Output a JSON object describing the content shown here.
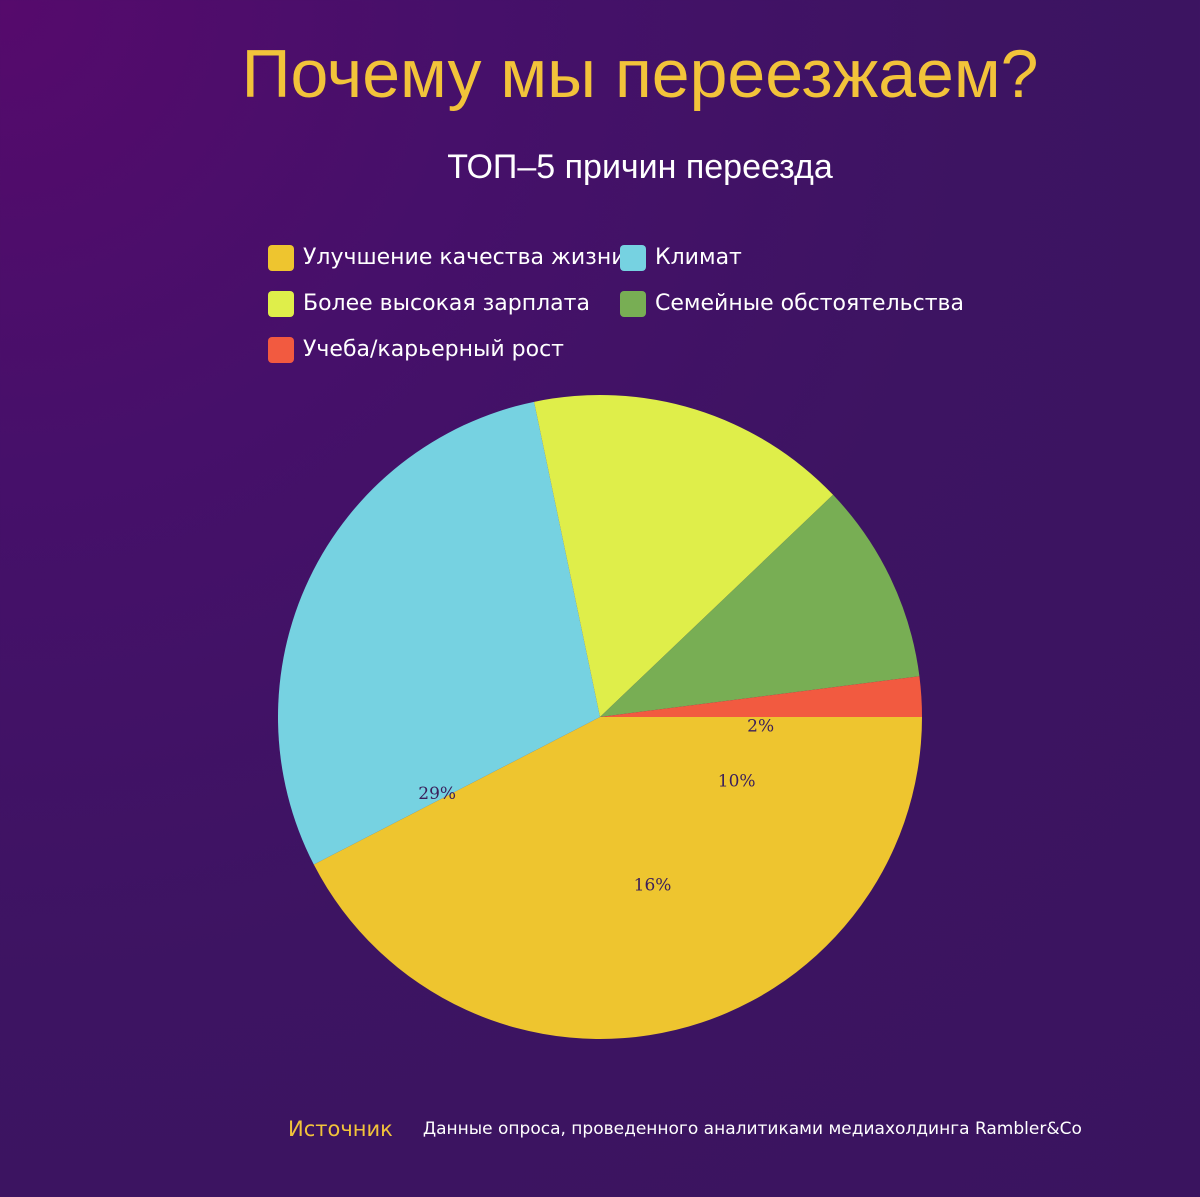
{
  "colors": {
    "title": "#f2c33a",
    "background": "#3d1462",
    "label_text": "#3b1f5a"
  },
  "chart_data": {
    "type": "pie",
    "title": "Почему мы переезжаем?",
    "subtitle": "ТОП–5 причин переезда",
    "slices": [
      {
        "label": "Улучшение качества жизни",
        "value": 42,
        "display": "42%",
        "color": "#eec52f"
      },
      {
        "label": "Климат",
        "value": 29,
        "display": "29%",
        "color": "#76d2e1"
      },
      {
        "label": "Более высокая зарплата",
        "value": 16,
        "display": "16%",
        "color": "#dfee4a"
      },
      {
        "label": "Семейные обстоятельства",
        "value": 10,
        "display": "10%",
        "color": "#78ae54"
      },
      {
        "label": "Учеба/карьерный рост",
        "value": 2,
        "display": "2%",
        "color": "#f25a40"
      }
    ],
    "legend_position": "top"
  },
  "footer": {
    "source_label": "Источник",
    "source_text": "Данные опроса, проведенного аналитиками медиахолдинга Rambler&Co"
  }
}
